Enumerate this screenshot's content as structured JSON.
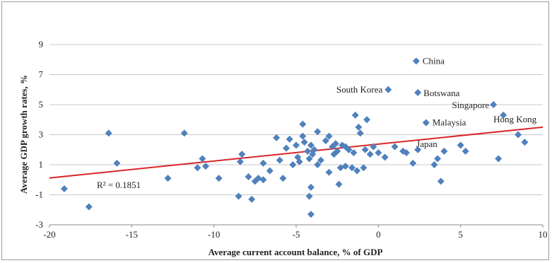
{
  "chart_data": {
    "type": "scatter",
    "xlabel": "Average current account balance, % of GDP",
    "ylabel": "Average GDP growth rates, %",
    "xlim": [
      -20,
      10
    ],
    "ylim": [
      -3,
      9
    ],
    "x_ticks": [
      -20,
      -15,
      -10,
      -5,
      0,
      5,
      10
    ],
    "y_ticks": [
      -3,
      -1,
      1,
      3,
      5,
      7,
      9
    ],
    "x_tick_labels": [
      "-20",
      "-15",
      "-10",
      "-5",
      "0",
      "5",
      "10"
    ],
    "y_tick_labels": [
      "-3",
      "-1",
      "1",
      "3",
      "5",
      "7",
      "9"
    ],
    "grid": "horizontal",
    "marker_color": "#4f81bd",
    "trendline": {
      "color": "#d9262a",
      "start": [
        -20,
        0.12
      ],
      "end": [
        10,
        3.5
      ],
      "r2_label": "R² = 0.1851"
    },
    "labeled_points": [
      {
        "name": "China",
        "x": 2.3,
        "y": 7.9
      },
      {
        "name": "South Korea",
        "x": 0.6,
        "y": 6.0
      },
      {
        "name": "Botswana",
        "x": 2.4,
        "y": 5.8
      },
      {
        "name": "Singapore",
        "x": 7.0,
        "y": 5.0
      },
      {
        "name": "Hong Kong",
        "x": 7.6,
        "y": 4.3
      },
      {
        "name": "Malaysia",
        "x": 2.9,
        "y": 3.8
      },
      {
        "name": "Japan",
        "x": 2.4,
        "y": 2.0
      }
    ],
    "points": [
      {
        "x": -19.1,
        "y": -0.6
      },
      {
        "x": -17.6,
        "y": -1.8
      },
      {
        "x": -16.4,
        "y": 3.1
      },
      {
        "x": -15.9,
        "y": 1.1
      },
      {
        "x": -12.8,
        "y": 0.1
      },
      {
        "x": -11.8,
        "y": 3.1
      },
      {
        "x": -11.0,
        "y": 0.8
      },
      {
        "x": -10.7,
        "y": 1.4
      },
      {
        "x": -10.5,
        "y": 0.9
      },
      {
        "x": -9.7,
        "y": 0.1
      },
      {
        "x": -8.5,
        "y": -1.1
      },
      {
        "x": -8.3,
        "y": 1.7
      },
      {
        "x": -8.4,
        "y": 1.2
      },
      {
        "x": -7.9,
        "y": 0.2
      },
      {
        "x": -7.7,
        "y": -1.3
      },
      {
        "x": -7.5,
        "y": -0.1
      },
      {
        "x": -7.3,
        "y": 0.1
      },
      {
        "x": -7.0,
        "y": 1.1
      },
      {
        "x": -7.0,
        "y": 0.0
      },
      {
        "x": -6.6,
        "y": 0.6
      },
      {
        "x": -6.2,
        "y": 2.8
      },
      {
        "x": -6.0,
        "y": 1.3
      },
      {
        "x": -5.8,
        "y": 0.1
      },
      {
        "x": -5.6,
        "y": 2.1
      },
      {
        "x": -5.4,
        "y": 2.7
      },
      {
        "x": -5.2,
        "y": 1.0
      },
      {
        "x": -5.0,
        "y": 2.3
      },
      {
        "x": -4.9,
        "y": 1.5
      },
      {
        "x": -4.8,
        "y": 1.2
      },
      {
        "x": -4.6,
        "y": 3.7
      },
      {
        "x": -4.6,
        "y": 2.9
      },
      {
        "x": -4.5,
        "y": 2.5
      },
      {
        "x": -4.3,
        "y": 1.9
      },
      {
        "x": -4.2,
        "y": 1.4
      },
      {
        "x": -4.1,
        "y": 2.3
      },
      {
        "x": -4.0,
        "y": 1.7
      },
      {
        "x": -4.2,
        "y": -1.1
      },
      {
        "x": -4.1,
        "y": -0.5
      },
      {
        "x": -4.1,
        "y": -2.3
      },
      {
        "x": -3.9,
        "y": 2.0
      },
      {
        "x": -3.7,
        "y": 3.2
      },
      {
        "x": -3.7,
        "y": 1.0
      },
      {
        "x": -3.5,
        "y": 1.3
      },
      {
        "x": -3.2,
        "y": 2.6
      },
      {
        "x": -3.0,
        "y": 2.9
      },
      {
        "x": -3.0,
        "y": 0.5
      },
      {
        "x": -2.8,
        "y": 2.2
      },
      {
        "x": -2.7,
        "y": 1.7
      },
      {
        "x": -2.6,
        "y": 2.4
      },
      {
        "x": -2.5,
        "y": 1.9
      },
      {
        "x": -2.4,
        "y": -0.3
      },
      {
        "x": -2.3,
        "y": 0.8
      },
      {
        "x": -2.2,
        "y": 2.3
      },
      {
        "x": -2.0,
        "y": 2.2
      },
      {
        "x": -2.0,
        "y": 0.9
      },
      {
        "x": -1.8,
        "y": 2.0
      },
      {
        "x": -1.6,
        "y": 0.8
      },
      {
        "x": -1.5,
        "y": 1.8
      },
      {
        "x": -1.4,
        "y": 4.3
      },
      {
        "x": -1.3,
        "y": 0.6
      },
      {
        "x": -1.2,
        "y": 3.5
      },
      {
        "x": -1.1,
        "y": 3.1
      },
      {
        "x": -0.9,
        "y": 0.8
      },
      {
        "x": -0.8,
        "y": 2.0
      },
      {
        "x": -0.7,
        "y": 4.0
      },
      {
        "x": -0.5,
        "y": 1.7
      },
      {
        "x": -0.3,
        "y": 2.2
      },
      {
        "x": 0.0,
        "y": 1.8
      },
      {
        "x": 0.4,
        "y": 1.5
      },
      {
        "x": 1.0,
        "y": 2.2
      },
      {
        "x": 1.5,
        "y": 1.9
      },
      {
        "x": 1.7,
        "y": 1.8
      },
      {
        "x": 2.1,
        "y": 1.1
      },
      {
        "x": 3.4,
        "y": 1.0
      },
      {
        "x": 3.6,
        "y": 1.4
      },
      {
        "x": 3.8,
        "y": -0.1
      },
      {
        "x": 4.0,
        "y": 1.9
      },
      {
        "x": 5.0,
        "y": 2.3
      },
      {
        "x": 5.3,
        "y": 1.9
      },
      {
        "x": 7.3,
        "y": 1.4
      },
      {
        "x": 8.5,
        "y": 3.0
      },
      {
        "x": 8.9,
        "y": 2.5
      }
    ]
  }
}
